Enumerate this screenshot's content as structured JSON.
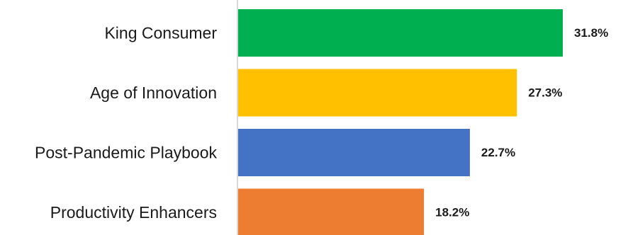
{
  "chart_data": {
    "type": "bar",
    "orientation": "horizontal",
    "categories": [
      "King Consumer",
      "Age of Innovation",
      "Post-Pandemic Playbook",
      "Productivity Enhancers"
    ],
    "values": [
      31.8,
      27.3,
      22.7,
      18.2
    ],
    "value_labels": [
      "31.8%",
      "27.3%",
      "22.7%",
      "18.2%"
    ],
    "unit": "%",
    "colors": [
      "#00b050",
      "#ffc000",
      "#4472c4",
      "#ed7d31"
    ],
    "xlim": [
      0,
      31.8
    ],
    "axis_line_color": "#d9d9d9",
    "grid": false,
    "legend": "none",
    "title": "",
    "xlabel": "",
    "ylabel": ""
  }
}
